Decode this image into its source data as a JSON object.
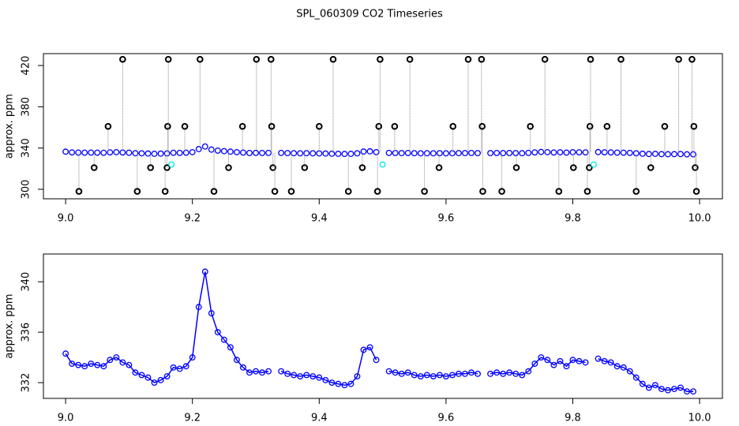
{
  "title": "SPL_060309  CO2 Timeseries",
  "chart_data": [
    {
      "type": "scatter",
      "ylabel": "approx. ppm",
      "xlim": [
        8.965,
        10.036
      ],
      "ylim": [
        290.8,
        431.5
      ],
      "xticks": [
        {
          "value": 9,
          "label": "9.0"
        },
        9.2,
        9.4,
        9.6,
        9.8,
        {
          "value": 10,
          "label": "10.0"
        }
      ],
      "yticks": [
        300,
        340,
        380,
        420
      ],
      "series": [
        {
          "color": "#0000ff",
          "drop_lines": false,
          "x": [
            9.0,
            9.01,
            9.02,
            9.03,
            9.04,
            9.05,
            9.06,
            9.07,
            9.08,
            9.09,
            9.1,
            9.11,
            9.12,
            9.13,
            9.14,
            9.15,
            9.16,
            9.17,
            9.18,
            9.19,
            9.2,
            9.21,
            9.22,
            9.23,
            9.24,
            9.25,
            9.26,
            9.27,
            9.28,
            9.29,
            9.3,
            9.31,
            9.32,
            9.33,
            9.34,
            9.35,
            9.36,
            9.37,
            9.38,
            9.39,
            9.4,
            9.41,
            9.42,
            9.43,
            9.44,
            9.45,
            9.46,
            9.47,
            9.48,
            9.49,
            9.5,
            9.51,
            9.52,
            9.53,
            9.54,
            9.55,
            9.56,
            9.57,
            9.58,
            9.59,
            9.6,
            9.61,
            9.62,
            9.63,
            9.64,
            9.65,
            9.66,
            9.67,
            9.68,
            9.69,
            9.7,
            9.71,
            9.72,
            9.73,
            9.74,
            9.75,
            9.76,
            9.77,
            9.78,
            9.79,
            9.8,
            9.81,
            9.82,
            9.83,
            9.84,
            9.85,
            9.86,
            9.87,
            9.88,
            9.89,
            9.9,
            9.91,
            9.92,
            9.93,
            9.94,
            9.95,
            9.96,
            9.97,
            9.98,
            9.99
          ],
          "values": [
            336.5,
            335.8,
            335.6,
            335.5,
            335.6,
            335.5,
            335.4,
            335.8,
            336.0,
            335.7,
            335.5,
            335.0,
            334.9,
            334.7,
            334.4,
            334.6,
            334.8,
            335.4,
            335.3,
            335.5,
            336.0,
            339.0,
            341.5,
            338.5,
            337.5,
            337.0,
            336.5,
            336.0,
            335.6,
            335.2,
            335.3,
            335.2,
            335.3,
            null,
            335.3,
            335.1,
            335.0,
            334.9,
            335.0,
            334.9,
            334.8,
            334.7,
            334.5,
            334.4,
            334.3,
            334.4,
            334.9,
            336.6,
            336.8,
            336.0,
            null,
            335.3,
            335.2,
            335.1,
            335.2,
            335.0,
            334.9,
            335.0,
            334.9,
            335.0,
            334.9,
            335.0,
            335.1,
            335.1,
            335.2,
            335.1,
            null,
            335.1,
            335.2,
            335.1,
            335.2,
            335.1,
            335.0,
            335.3,
            335.8,
            336.2,
            336.0,
            335.7,
            335.9,
            335.6,
            336.0,
            335.9,
            335.8,
            null,
            336.1,
            335.9,
            335.8,
            335.6,
            335.5,
            335.3,
            334.9,
            334.5,
            334.2,
            334.4,
            334.1,
            334.0,
            334.1,
            334.2,
            333.9,
            333.9
          ]
        },
        {
          "color": "#000000",
          "drop_lines": true,
          "x": [
            9.021,
            9.045,
            9.067,
            9.09,
            9.113,
            9.134,
            9.157,
            9.16,
            9.161,
            9.162,
            9.188,
            9.212,
            9.234,
            9.257,
            9.279,
            9.301,
            9.324,
            9.325,
            9.327,
            9.33,
            9.356,
            9.377,
            9.4,
            9.422,
            9.446,
            9.468,
            9.492,
            9.494,
            9.496,
            9.519,
            9.543,
            9.566,
            9.589,
            9.611,
            9.635,
            9.656,
            9.657,
            9.658,
            9.688,
            9.711,
            9.733,
            9.756,
            9.778,
            9.801,
            9.823,
            9.826,
            9.827,
            9.828,
            9.854,
            9.876,
            9.9,
            9.923,
            9.945,
            9.967,
            9.988,
            9.991,
            9.993,
            9.995
          ],
          "values": [
            298,
            321,
            361,
            426,
            298,
            321,
            298,
            321,
            361,
            426,
            361,
            426,
            298,
            321,
            361,
            426,
            426,
            361,
            321,
            298,
            298,
            321,
            361,
            426,
            298,
            321,
            298,
            361,
            426,
            361,
            426,
            298,
            321,
            361,
            426,
            426,
            361,
            298,
            298,
            321,
            361,
            426,
            298,
            321,
            298,
            321,
            361,
            426,
            361,
            426,
            298,
            321,
            361,
            426,
            426,
            361,
            321,
            298
          ]
        },
        {
          "color": "#00e5ee",
          "drop_lines": false,
          "x": [
            9.167,
            9.5,
            9.833
          ],
          "values": [
            324,
            324,
            324
          ]
        }
      ]
    },
    {
      "type": "line",
      "ylabel": "approx. ppm",
      "xlim": [
        8.965,
        10.036
      ],
      "ylim": [
        330.75,
        342.2
      ],
      "xticks": [
        {
          "value": 9,
          "label": "9.0"
        },
        9.2,
        9.4,
        9.6,
        9.8,
        {
          "value": 10,
          "label": "10.0"
        }
      ],
      "yticks": [
        332,
        336,
        340
      ],
      "series": [
        {
          "color": "#0000ff",
          "x": [
            9.0,
            9.01,
            9.02,
            9.03,
            9.04,
            9.05,
            9.06,
            9.07,
            9.08,
            9.09,
            9.1,
            9.11,
            9.12,
            9.13,
            9.14,
            9.15,
            9.16,
            9.17,
            9.18,
            9.19,
            9.2,
            9.21,
            9.22,
            9.23,
            9.24,
            9.25,
            9.26,
            9.27,
            9.28,
            9.29,
            9.3,
            9.31,
            9.32,
            9.33,
            9.34,
            9.35,
            9.36,
            9.37,
            9.38,
            9.39,
            9.4,
            9.41,
            9.42,
            9.43,
            9.44,
            9.45,
            9.46,
            9.47,
            9.48,
            9.49,
            9.5,
            9.51,
            9.52,
            9.53,
            9.54,
            9.55,
            9.56,
            9.57,
            9.58,
            9.59,
            9.6,
            9.61,
            9.62,
            9.63,
            9.64,
            9.65,
            9.66,
            9.67,
            9.68,
            9.69,
            9.7,
            9.71,
            9.72,
            9.73,
            9.74,
            9.75,
            9.76,
            9.77,
            9.78,
            9.79,
            9.8,
            9.81,
            9.82,
            9.83,
            9.84,
            9.85,
            9.86,
            9.87,
            9.88,
            9.89,
            9.9,
            9.91,
            9.92,
            9.93,
            9.94,
            9.95,
            9.96,
            9.97,
            9.98,
            9.99
          ],
          "values": [
            334.3,
            333.5,
            333.4,
            333.3,
            333.5,
            333.4,
            333.3,
            333.8,
            334.0,
            333.6,
            333.4,
            332.8,
            332.6,
            332.4,
            332.0,
            332.2,
            332.5,
            333.2,
            333.1,
            333.3,
            334.0,
            338.0,
            340.8,
            337.5,
            336.0,
            335.4,
            334.8,
            333.8,
            333.2,
            332.8,
            332.9,
            332.8,
            332.9,
            null,
            332.9,
            332.7,
            332.6,
            332.5,
            332.6,
            332.5,
            332.4,
            332.2,
            332.0,
            331.9,
            331.8,
            331.9,
            332.5,
            334.6,
            334.8,
            333.8,
            null,
            332.9,
            332.8,
            332.7,
            332.8,
            332.6,
            332.5,
            332.6,
            332.5,
            332.6,
            332.5,
            332.6,
            332.7,
            332.7,
            332.8,
            332.7,
            null,
            332.7,
            332.8,
            332.7,
            332.8,
            332.7,
            332.6,
            332.9,
            333.5,
            334.0,
            333.8,
            333.4,
            333.7,
            333.3,
            333.8,
            333.7,
            333.6,
            null,
            333.9,
            333.7,
            333.6,
            333.3,
            333.2,
            332.9,
            332.4,
            331.9,
            331.6,
            331.8,
            331.5,
            331.4,
            331.5,
            331.6,
            331.3,
            331.3
          ]
        }
      ]
    }
  ]
}
